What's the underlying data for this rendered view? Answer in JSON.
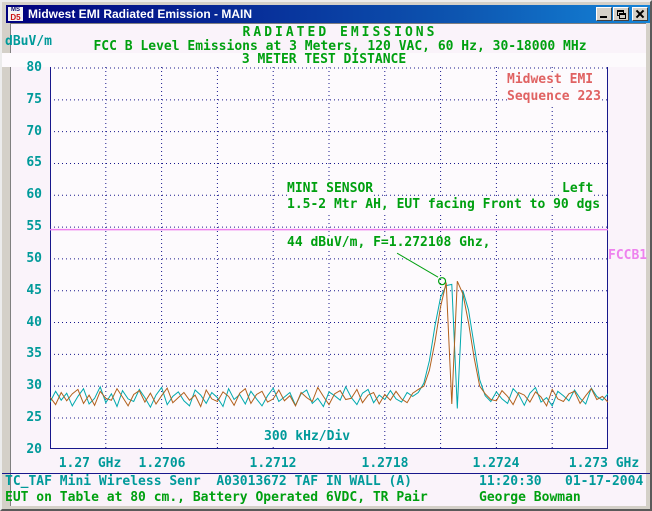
{
  "window": {
    "title": "Midwest EMI Radiated Emission - MAIN",
    "icon_top": "MS",
    "icon_bottom": "D5"
  },
  "header": {
    "line1": "RADIATED EMISSIONS",
    "line2": "FCC B Level Emissions at 3 Meters, 120 VAC, 60 Hz, 30-18000 MHz",
    "line3": "3 METER TEST DISTANCE",
    "y_axis_unit": "dBuV/m"
  },
  "annotations": {
    "vendor_line1": "Midwest EMI",
    "vendor_line2": "Sequence 223",
    "sensor_line1": "MINI SENSOR",
    "sensor_line2": "1.5-2 Mtr AH, EUT facing Front to 90 dgs",
    "orientation": "Left",
    "marker_text": "44 dBuV/m, F=1.272108 Ghz,",
    "limit_label": "FCCB1",
    "div_label": "300 kHz/Div"
  },
  "status": {
    "line1_left": "TC_TAF Mini Wireless Senr  A03013672 TAF IN WALL (A)",
    "line1_time": "11:20:30",
    "line1_date": "01-17-2004",
    "line2_left": "EUT on Table at 80 cm., Battery Operated 6VDC, TR Pair",
    "line2_right": "George Bowman"
  },
  "colors": {
    "title_gradient_start": "#00007e",
    "title_gradient_end": "#1484d8",
    "green_text": "#00a010",
    "teal_text": "#009a9a",
    "red_text": "#e06262",
    "limit_magenta": "#ee82ee",
    "grid_navy": "#18188c",
    "trace1_cyan": "#00a9ad",
    "trace2_brown": "#b2601c"
  },
  "chart_data": {
    "type": "line",
    "title": "RADIATED EMISSIONS",
    "subtitle": "FCC B Level Emissions at 3 Meters, 120 VAC, 60 Hz, 30-18000 MHz",
    "ylabel": "dBuV/m",
    "x_start_ghz": 1.27,
    "x_end_ghz": 1.273,
    "x_step_ghz": 3e-05,
    "x_div_label": "300 kHz/Div",
    "ylim": [
      20,
      80
    ],
    "yticks": [
      80,
      75,
      70,
      65,
      60,
      55,
      50,
      45,
      40,
      35,
      30,
      25,
      20
    ],
    "xticks": [
      "1.27 GHz",
      "1.2706",
      "1.2712",
      "1.2718",
      "1.2724",
      "1.273 GHz"
    ],
    "grid": "dotted",
    "limit_line": {
      "label": "FCCB1",
      "value_dbuvm": 54.6,
      "color": "#ee82ee"
    },
    "peak_marker": {
      "text": "44 dBuV/m, F=1.272108 Ghz,",
      "f_ghz": 1.272108,
      "reported_level_dbuvm": 44,
      "marker_level_dbuvm": 46.5
    },
    "series": [
      {
        "name": "trace-cyan",
        "color": "#00a9ad",
        "values": [
          27.5,
          29.2,
          27.8,
          28.9,
          26.9,
          28.4,
          29.6,
          27.2,
          28.1,
          29.9,
          27.4,
          28.8,
          26.8,
          29.3,
          28.0,
          27.6,
          29.5,
          28.2,
          26.7,
          28.6,
          29.8,
          27.1,
          28.4,
          29.1,
          27.7,
          26.9,
          29.4,
          28.6,
          27.3,
          29.0,
          28.2,
          26.8,
          29.6,
          27.9,
          28.7,
          27.2,
          29.2,
          28.0,
          26.9,
          28.5,
          29.7,
          27.6,
          28.3,
          29.0,
          27.0,
          28.8,
          29.4,
          27.3,
          28.1,
          26.8,
          29.1,
          28.5,
          27.8,
          29.9,
          28.2,
          27.1,
          28.9,
          29.5,
          27.4,
          28.6,
          27.9,
          29.3,
          28.0,
          27.5,
          29.0,
          28.4,
          29.0,
          30.5,
          34.0,
          39.5,
          44.0,
          45.8,
          46.0,
          26.5,
          45.0,
          42.0,
          36.5,
          31.0,
          28.5,
          27.6,
          29.1,
          28.0,
          27.3,
          29.6,
          28.7,
          27.0,
          28.9,
          29.8,
          27.5,
          28.2,
          26.9,
          29.2,
          28.5,
          27.7,
          29.4,
          28.1,
          27.2,
          29.7,
          28.4,
          27.8,
          28.8
        ]
      },
      {
        "name": "trace-brown",
        "color": "#b2601c",
        "values": [
          28.3,
          27.1,
          29.0,
          27.7,
          28.8,
          29.5,
          27.3,
          28.6,
          27.0,
          29.2,
          28.1,
          27.8,
          29.6,
          28.3,
          26.9,
          28.7,
          29.3,
          27.5,
          28.9,
          27.2,
          28.5,
          29.7,
          27.4,
          28.2,
          29.0,
          27.8,
          28.6,
          26.8,
          29.4,
          28.0,
          27.6,
          29.1,
          28.4,
          27.0,
          28.9,
          29.6,
          27.3,
          28.7,
          29.2,
          27.5,
          28.0,
          29.4,
          27.7,
          28.5,
          26.9,
          29.0,
          28.2,
          27.6,
          29.8,
          28.4,
          27.1,
          28.8,
          29.3,
          27.9,
          28.1,
          29.5,
          27.4,
          28.6,
          29.0,
          27.2,
          28.7,
          27.8,
          29.2,
          28.0,
          27.4,
          28.9,
          29.5,
          30.0,
          32.5,
          37.0,
          42.5,
          46.3,
          27.2,
          46.5,
          44.5,
          40.0,
          34.5,
          30.0,
          28.8,
          27.9,
          27.7,
          29.3,
          28.4,
          27.1,
          29.0,
          28.6,
          27.5,
          29.1,
          28.3,
          26.9,
          29.5,
          28.0,
          27.6,
          28.8,
          29.2,
          27.3,
          28.5,
          29.6,
          27.9,
          28.4,
          27.5
        ]
      }
    ]
  }
}
